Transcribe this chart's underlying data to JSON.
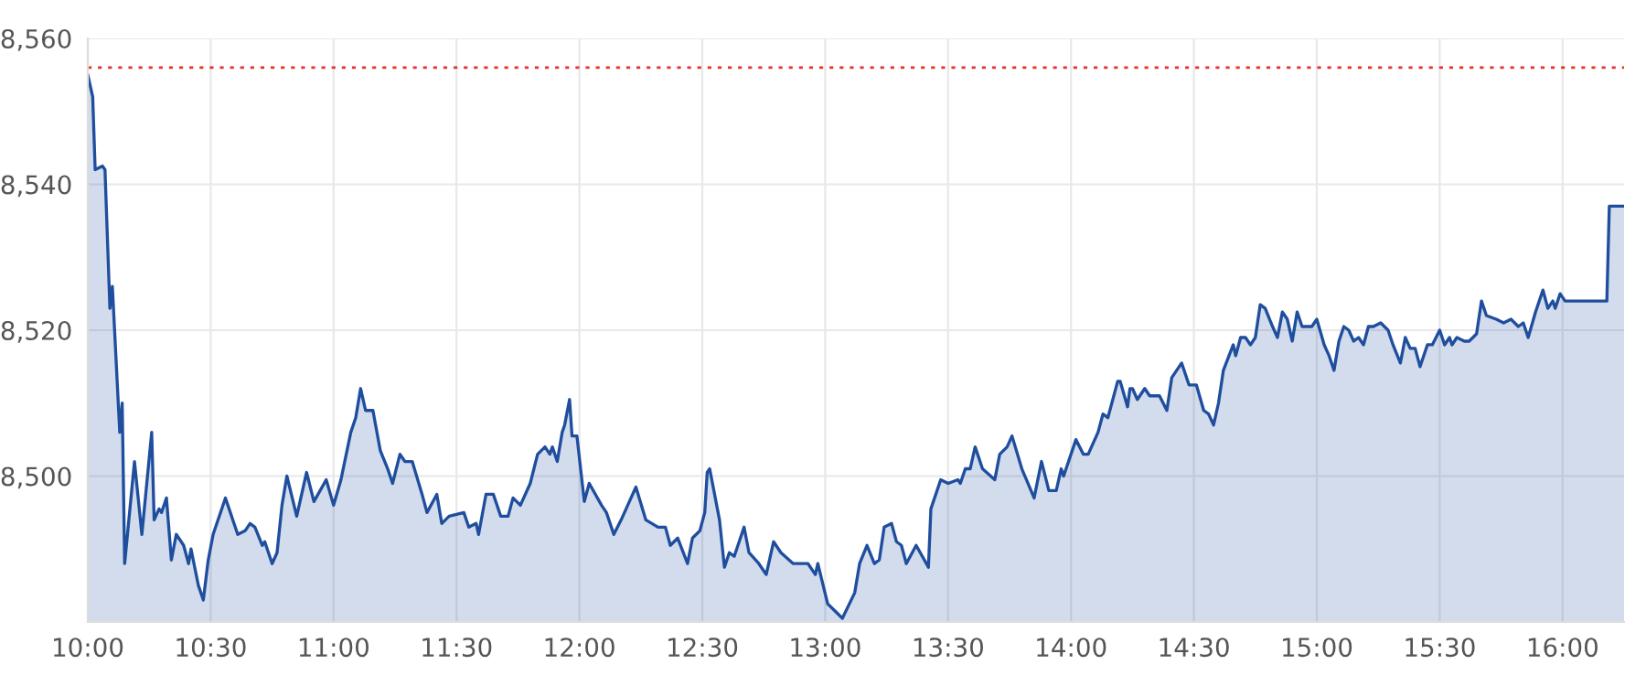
{
  "chart_data": {
    "type": "area",
    "x": [
      10.0,
      10.02,
      10.03,
      10.06,
      10.07,
      10.09,
      10.1,
      10.13,
      10.14,
      10.15,
      10.19,
      10.22,
      10.26,
      10.27,
      10.29,
      10.3,
      10.32,
      10.34,
      10.36,
      10.39,
      10.41,
      10.42,
      10.45,
      10.47,
      10.49,
      10.51,
      10.56,
      10.58,
      10.61,
      10.64,
      10.66,
      10.68,
      10.71,
      10.72,
      10.75,
      10.77,
      10.79,
      10.81,
      10.85,
      10.89,
      10.92,
      10.97,
      11.0,
      11.03,
      11.07,
      11.09,
      11.11,
      11.13,
      11.16,
      11.19,
      11.22,
      11.24,
      11.27,
      11.29,
      11.32,
      11.36,
      11.38,
      11.42,
      11.44,
      11.47,
      11.53,
      11.55,
      11.58,
      11.59,
      11.62,
      11.65,
      11.68,
      11.71,
      11.73,
      11.76,
      11.8,
      11.83,
      11.86,
      11.88,
      11.89,
      11.91,
      11.93,
      11.94,
      11.96,
      11.97,
      11.99,
      12.02,
      12.04,
      12.09,
      12.11,
      12.14,
      12.17,
      12.21,
      12.23,
      12.27,
      12.32,
      12.35,
      12.37,
      12.4,
      12.44,
      12.46,
      12.49,
      12.51,
      12.52,
      12.53,
      12.57,
      12.59,
      12.61,
      12.63,
      12.65,
      12.67,
      12.69,
      12.73,
      12.76,
      12.79,
      12.82,
      12.87,
      12.93,
      12.96,
      12.97,
      13.01,
      13.04,
      13.07,
      13.12,
      13.14,
      13.17,
      13.2,
      13.22,
      13.24,
      13.27,
      13.29,
      13.31,
      13.33,
      13.37,
      13.42,
      13.43,
      13.47,
      13.5,
      13.54,
      13.55,
      13.57,
      13.59,
      13.61,
      13.64,
      13.69,
      13.71,
      13.74,
      13.76,
      13.8,
      13.85,
      13.88,
      13.91,
      13.94,
      13.96,
      13.97,
      14.02,
      14.05,
      14.07,
      14.11,
      14.13,
      14.15,
      14.19,
      14.2,
      14.23,
      14.24,
      14.25,
      14.27,
      14.3,
      14.32,
      14.36,
      14.39,
      14.41,
      14.45,
      14.48,
      14.51,
      14.54,
      14.56,
      14.58,
      14.6,
      14.62,
      14.66,
      14.67,
      14.69,
      14.71,
      14.73,
      14.75,
      14.77,
      14.79,
      14.82,
      14.84,
      14.86,
      14.88,
      14.9,
      14.92,
      14.94,
      14.98,
      15.0,
      15.03,
      15.05,
      15.07,
      15.09,
      15.11,
      15.13,
      15.15,
      15.17,
      15.19,
      15.21,
      15.23,
      15.26,
      15.29,
      15.31,
      15.34,
      15.36,
      15.38,
      15.4,
      15.42,
      15.45,
      15.47,
      15.5,
      15.52,
      15.54,
      15.55,
      15.57,
      15.6,
      15.62,
      15.65,
      15.67,
      15.69,
      15.73,
      15.76,
      15.79,
      15.82,
      15.84,
      15.86,
      15.89,
      15.92,
      15.94,
      15.96,
      15.97,
      15.99,
      16.01,
      16.18,
      16.19,
      16.25
    ],
    "series": [
      {
        "color": "#1f4e9e",
        "values": [
          8555,
          8552,
          8542,
          8542.5,
          8542,
          8523,
          8526,
          8506,
          8510,
          8488,
          8502,
          8492,
          8506,
          8494,
          8495.5,
          8495,
          8497,
          8488.5,
          8492,
          8490.5,
          8488,
          8490,
          8485,
          8483,
          8488.5,
          8492,
          8497,
          8495,
          8492,
          8492.5,
          8493.5,
          8493,
          8490.5,
          8491,
          8488,
          8489.5,
          8496,
          8500,
          8494.5,
          8500.5,
          8496.5,
          8499.5,
          8496,
          8499.5,
          8506,
          8508,
          8512,
          8509,
          8509,
          8503.5,
          8501,
          8499,
          8503,
          8502,
          8502,
          8497.5,
          8495,
          8497.5,
          8493.5,
          8494.5,
          8495,
          8493,
          8493.5,
          8492,
          8497.5,
          8497.5,
          8494.5,
          8494.5,
          8497,
          8496,
          8499,
          8503,
          8504,
          8503,
          8504,
          8502,
          8506,
          8507,
          8510.5,
          8505.5,
          8505.5,
          8496.5,
          8499,
          8496,
          8495,
          8492,
          8494,
          8497,
          8498.5,
          8494,
          8493,
          8493,
          8490.5,
          8491.5,
          8488,
          8491.5,
          8492.5,
          8495,
          8500.5,
          8501,
          8494,
          8487.5,
          8489.5,
          8489,
          8491,
          8493,
          8489.5,
          8488,
          8486.5,
          8491,
          8489.5,
          8488,
          8488,
          8486.5,
          8488,
          8482.5,
          8481.5,
          8480.5,
          8484,
          8488,
          8490.5,
          8488,
          8488.5,
          8493,
          8493.5,
          8491,
          8490.5,
          8488,
          8490.5,
          8487.5,
          8495.5,
          8499.5,
          8499,
          8499.5,
          8499,
          8501,
          8501,
          8504,
          8501,
          8499.5,
          8503,
          8504,
          8505.5,
          8501,
          8497,
          8502,
          8498,
          8498,
          8501,
          8500,
          8505,
          8503,
          8503,
          8506,
          8508.5,
          8508,
          8513,
          8513,
          8509.5,
          8512,
          8512,
          8510.5,
          8512,
          8511,
          8511,
          8509,
          8513.5,
          8515.5,
          8512.5,
          8512.5,
          8509,
          8508.5,
          8507,
          8510,
          8514.5,
          8518,
          8516.5,
          8519,
          8519,
          8518,
          8519,
          8523.5,
          8523,
          8520.5,
          8519,
          8522.5,
          8521.5,
          8518.5,
          8522.5,
          8520.5,
          8520.5,
          8521.5,
          8518,
          8516.5,
          8514.5,
          8518.5,
          8520.5,
          8520,
          8518.5,
          8519,
          8518,
          8520.5,
          8520.5,
          8521,
          8520,
          8518,
          8515.5,
          8519,
          8517.5,
          8517.5,
          8515,
          8518,
          8518,
          8520,
          8518,
          8519,
          8518,
          8519,
          8518.5,
          8518.5,
          8519.5,
          8524,
          8522,
          8521.5,
          8521,
          8521.5,
          8520.5,
          8521,
          8519,
          8522.5,
          8525.5,
          8523,
          8524,
          8523,
          8525,
          8524,
          8524,
          8537,
          8537
        ]
      }
    ],
    "xlim": [
      10,
      16.25
    ],
    "xticks": [
      {
        "value": 10,
        "label": "10:00"
      },
      {
        "value": 10.5,
        "label": "10:30"
      },
      {
        "value": 11,
        "label": "11:00"
      },
      {
        "value": 11.5,
        "label": "11:30"
      },
      {
        "value": 12,
        "label": "12:00"
      },
      {
        "value": 12.5,
        "label": "12:30"
      },
      {
        "value": 13,
        "label": "13:00"
      },
      {
        "value": 13.5,
        "label": "13:30"
      },
      {
        "value": 14,
        "label": "14:00"
      },
      {
        "value": 14.5,
        "label": "14:30"
      },
      {
        "value": 15,
        "label": "15:00"
      },
      {
        "value": 15.5,
        "label": "15:30"
      },
      {
        "value": 16,
        "label": "16:00"
      }
    ],
    "ylim": [
      8480,
      8560
    ],
    "yticks": [
      {
        "value": 8500,
        "label": "8,500"
      },
      {
        "value": 8520,
        "label": "8,520"
      },
      {
        "value": 8540,
        "label": "8,540"
      },
      {
        "value": 8560,
        "label": "8,560"
      }
    ],
    "ref_lines": [
      {
        "axis": "y",
        "value": 8556,
        "color": "#e8302a",
        "line_style": "dotted"
      }
    ],
    "grid": true
  }
}
